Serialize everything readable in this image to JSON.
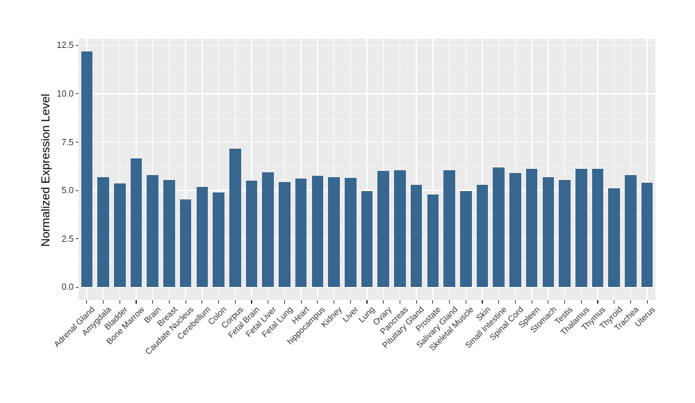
{
  "figure": {
    "background": "#FFFFFF"
  },
  "chart_data": {
    "type": "bar",
    "title": "",
    "xlabel": "",
    "ylabel": "Normalized Expression Level",
    "categories": [
      "Adrenal Gland",
      "Amygdala",
      "Bladder",
      "Bone Marrow",
      "Brain",
      "Breast",
      "Caudate Nucleus",
      "Cerebellum",
      "Colon",
      "Corpus",
      "Fetal Brain",
      "Fetal Liver",
      "Fetal Lung",
      "Heart",
      "hippocampus",
      "Kidney",
      "Liver",
      "Lung",
      "Ovary",
      "Pancreas",
      "Pituitary Gland",
      "Prostate",
      "Salivary Gland",
      "Skeletal Muscle",
      "Skin",
      "Small Intestine",
      "Spinal Cord",
      "Spleen",
      "Stomach",
      "Testis",
      "Thalamus",
      "Thymus",
      "Thyroid",
      "Trachea",
      "Uterus"
    ],
    "values": [
      12.2,
      5.7,
      5.35,
      6.65,
      5.8,
      5.55,
      4.55,
      5.2,
      4.9,
      7.15,
      5.5,
      5.95,
      5.45,
      5.6,
      5.75,
      5.7,
      5.65,
      4.95,
      6.0,
      6.05,
      5.3,
      4.8,
      6.05,
      4.95,
      5.3,
      6.2,
      5.9,
      6.1,
      5.7,
      5.55,
      6.1,
      6.1,
      5.1,
      5.8,
      5.4
    ],
    "yticks": [
      0,
      2.5,
      5,
      7.5,
      10,
      12.5
    ],
    "ytick_labels": [
      "0.0",
      "2.5",
      "5.0",
      "7.5",
      "10.0",
      "12.5"
    ],
    "ylim": [
      0,
      12.5
    ],
    "grid": "major-and-minor",
    "legend": "none",
    "bar_color": "#37678F",
    "panel_background": "#EBEBEB",
    "gridline_color": "#FFFFFF",
    "axis_text_color": "#333333"
  }
}
